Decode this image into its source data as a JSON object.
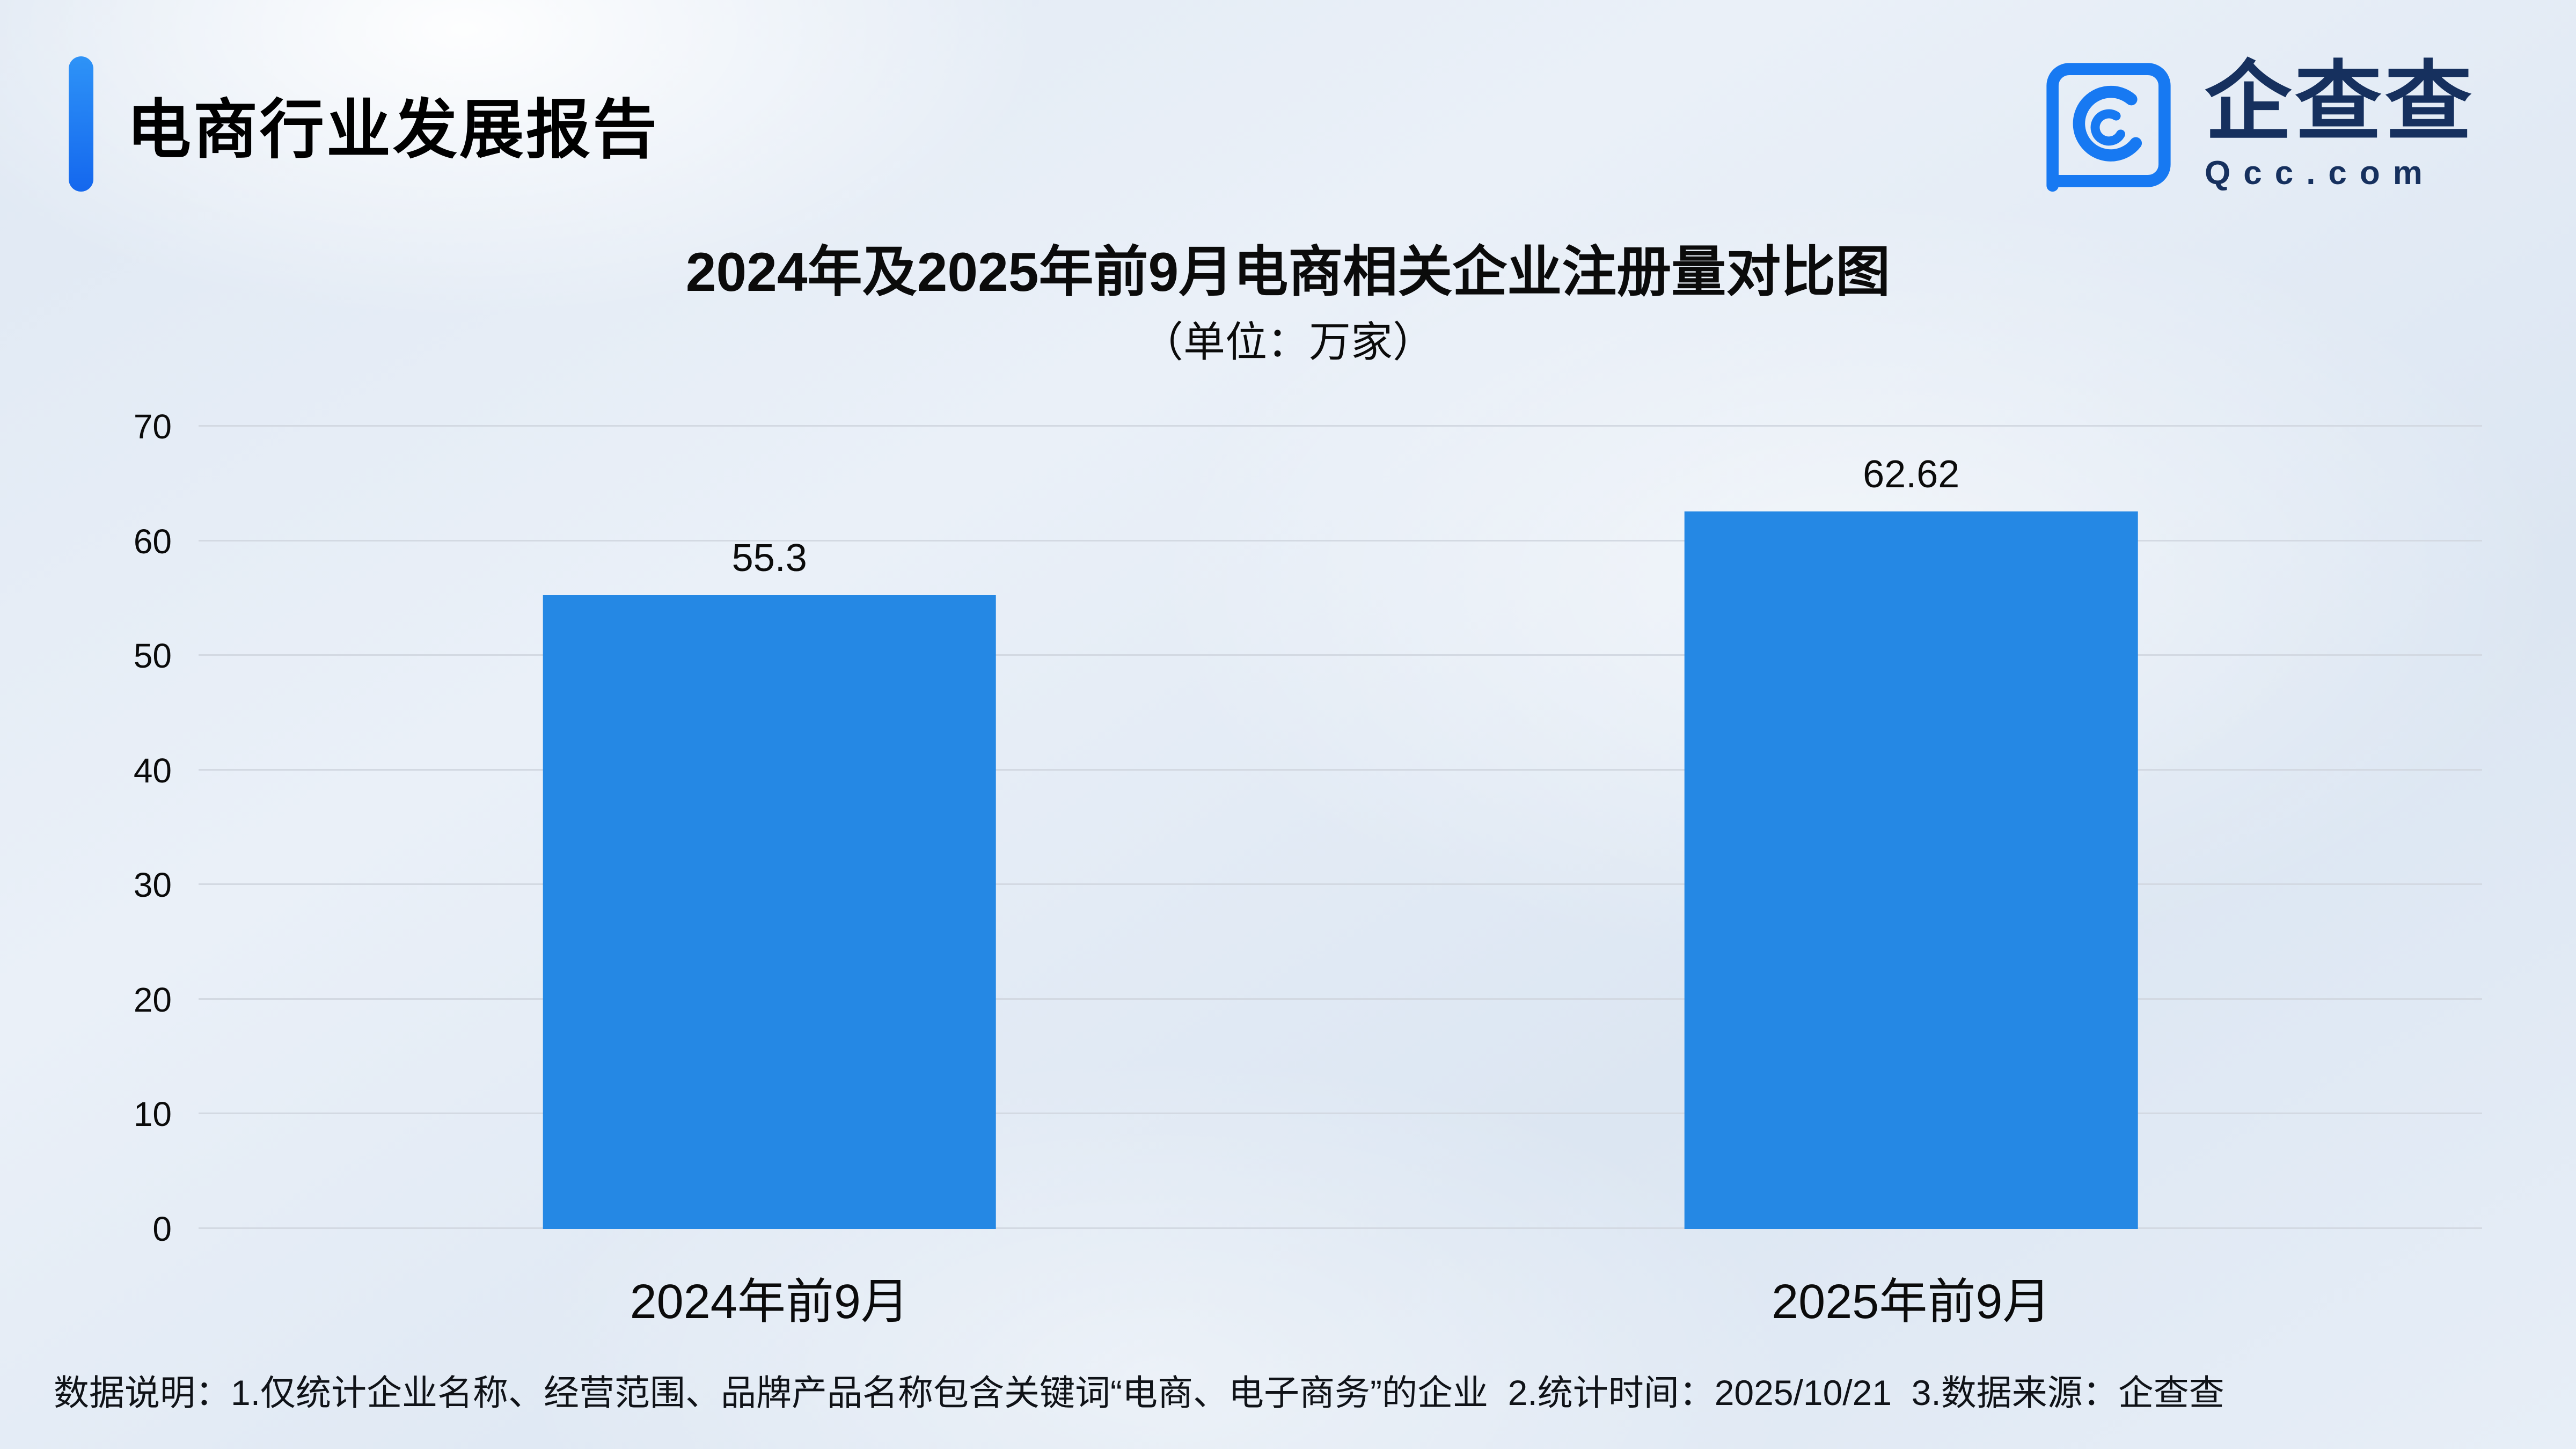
{
  "header": {
    "title": "电商行业发展报告"
  },
  "logo": {
    "brand_name": "企查查",
    "brand_domain": "Qcc.com"
  },
  "footer": {
    "note": "数据说明：1.仅统计企业名称、经营范围、品牌产品名称包含关键词“电商、电子商务”的企业  2.统计时间：2025/10/21  3.数据来源：企查查"
  },
  "colors": {
    "accent_blue": "#1c7df2",
    "bar_blue": "#2588e4",
    "brand_navy": "#16305e",
    "gridline_gray": "#d3d9e2",
    "background_light_blue": "#e3ebf5"
  },
  "chart_data": {
    "type": "bar",
    "title": "2024年及2025年前9月电商相关企业注册量对比图",
    "subtitle": "（单位：万家）",
    "categories": [
      "2024年前9月",
      "2025年前9月"
    ],
    "values": [
      55.3,
      62.62
    ],
    "value_labels": [
      "55.3",
      "62.62"
    ],
    "xlabel": "",
    "ylabel": "",
    "ylim": [
      0,
      70
    ],
    "yticks": [
      0,
      10,
      20,
      30,
      40,
      50,
      60,
      70
    ],
    "ytick_interval": 10,
    "grid": true,
    "legend": false,
    "bar_color": "#2588e4"
  }
}
